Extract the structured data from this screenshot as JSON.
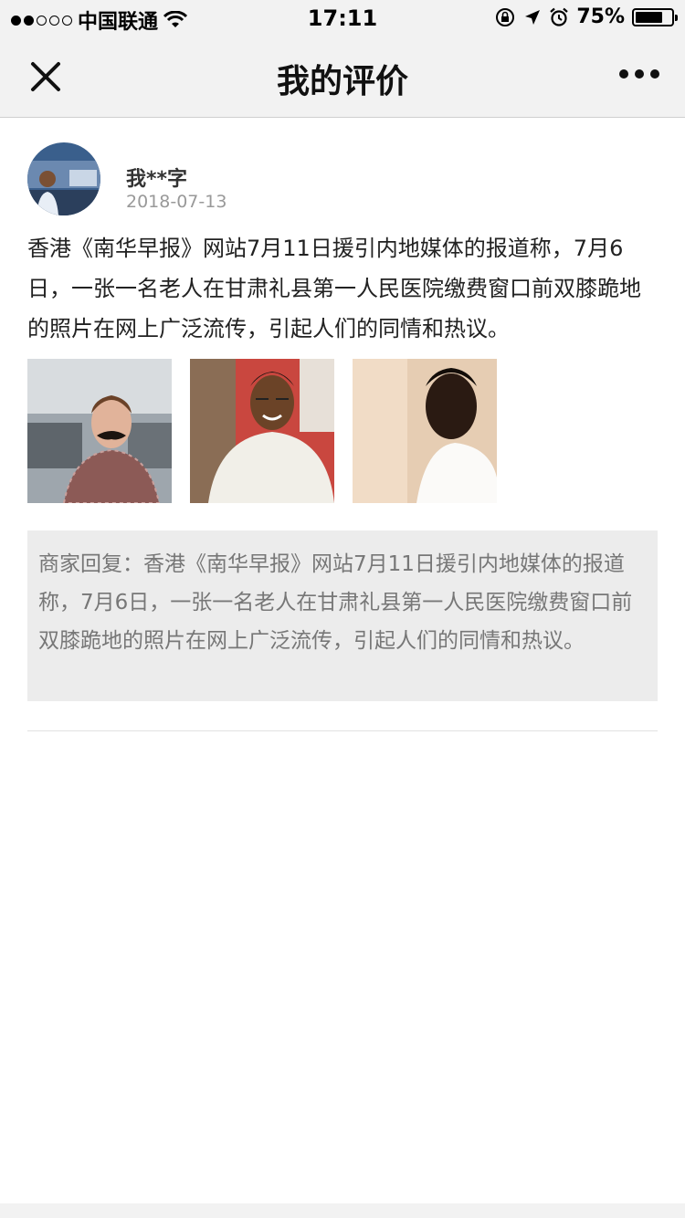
{
  "status_bar": {
    "carrier": "中国联通",
    "time": "17:11",
    "battery_text": "75%",
    "battery_level": 0.75,
    "signal_bars_filled": 2,
    "signal_bars_total": 5
  },
  "nav": {
    "title": "我的评价",
    "close_icon": "close-icon",
    "more_icon": "more-icon"
  },
  "review": {
    "username": "我**字",
    "date": "2018-07-13",
    "content": "香港《南华早报》网站7月11日援引内地媒体的报道称，7月6日，一张一名老人在甘肃礼县第一人民医院缴费窗口前双膝跪地的照片在网上广泛流传，引起人们的同情和热议。",
    "photos": [
      {
        "name": "review-photo-1"
      },
      {
        "name": "review-photo-2"
      },
      {
        "name": "review-photo-3"
      }
    ],
    "reply": "商家回复：香港《南华早报》网站7月11日援引内地媒体的报道称，7月6日，一张一名老人在甘肃礼县第一人民医院缴费窗口前双膝跪地的照片在网上广泛流传，引起人们的同情和热议。"
  },
  "colors": {
    "bar_bg": "#f2f2f2",
    "reply_bg": "#ececec",
    "text_main": "#222222",
    "text_muted": "#999999"
  }
}
